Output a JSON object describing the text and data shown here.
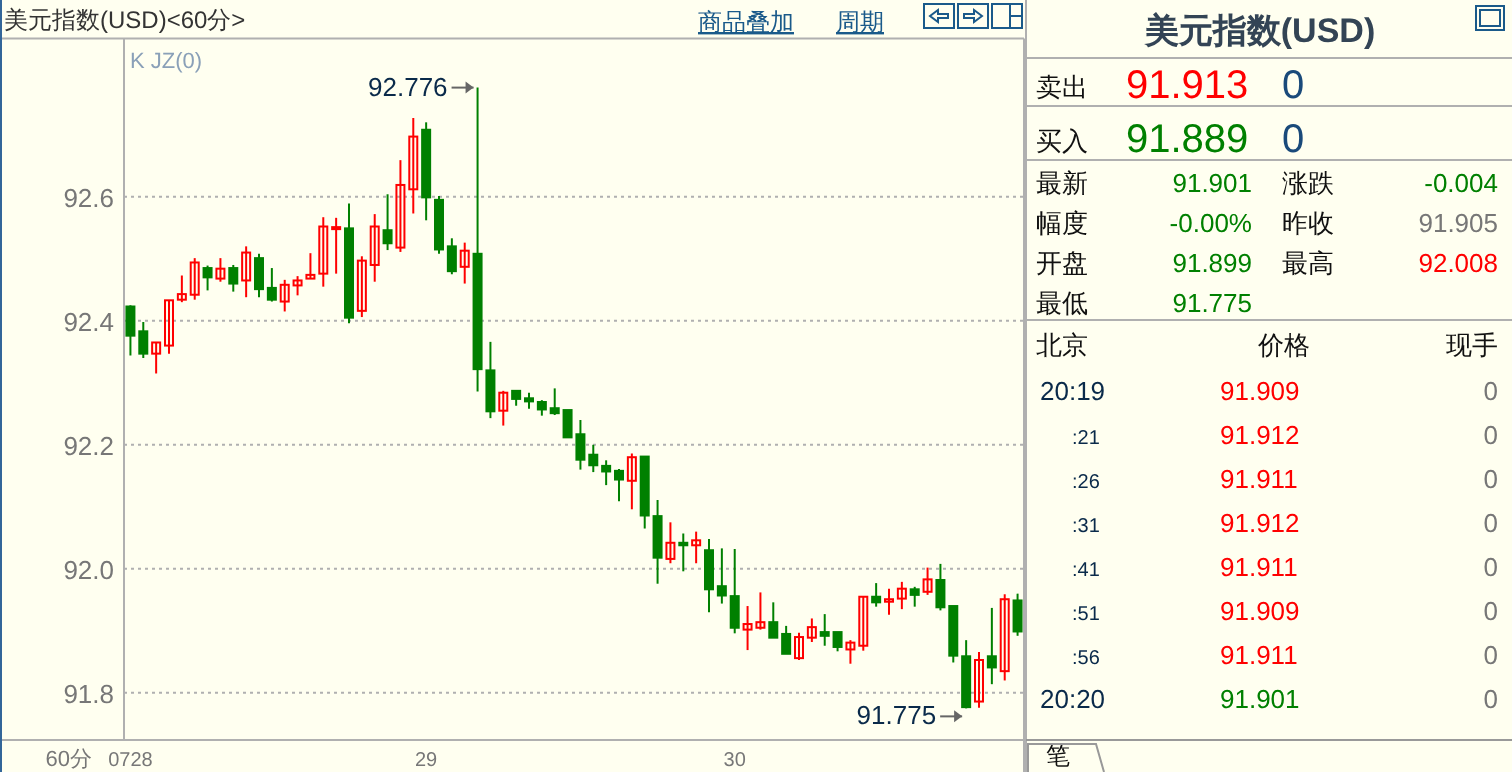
{
  "chart_data": [
    {
      "type": "candlestick",
      "title": "美元指数(USD)<60分>",
      "subtitle": "K JZ(0)",
      "categories": [
        "0728",
        null,
        null,
        null,
        null,
        null,
        null,
        null,
        null,
        null,
        null,
        null,
        null,
        null,
        null,
        null,
        null,
        null,
        null,
        null,
        null,
        null,
        null,
        "29",
        null,
        null,
        null,
        null,
        null,
        null,
        null,
        null,
        null,
        null,
        null,
        null,
        null,
        null,
        null,
        null,
        null,
        null,
        null,
        null,
        null,
        null,
        null,
        "30",
        null,
        null,
        null,
        null,
        null,
        null,
        null,
        null,
        null,
        null,
        null,
        null,
        null,
        null,
        null,
        null,
        null,
        null,
        null,
        null,
        null,
        null
      ],
      "ohlc": [
        [
          92.423,
          92.425,
          92.344,
          92.376
        ],
        [
          92.383,
          92.398,
          92.34,
          92.347
        ],
        [
          92.347,
          92.365,
          92.315,
          92.365
        ],
        [
          92.36,
          92.433,
          92.347,
          92.433
        ],
        [
          92.434,
          92.473,
          92.43,
          92.443
        ],
        [
          92.442,
          92.501,
          92.434,
          92.494
        ],
        [
          92.485,
          92.489,
          92.449,
          92.47
        ],
        [
          92.468,
          92.501,
          92.463,
          92.484
        ],
        [
          92.485,
          92.49,
          92.447,
          92.46
        ],
        [
          92.465,
          92.52,
          92.438,
          92.51
        ],
        [
          92.501,
          92.508,
          92.438,
          92.451
        ],
        [
          92.453,
          92.485,
          92.431,
          92.434
        ],
        [
          92.431,
          92.466,
          92.415,
          92.458
        ],
        [
          92.457,
          92.472,
          92.441,
          92.465
        ],
        [
          92.468,
          92.509,
          92.468,
          92.474
        ],
        [
          92.476,
          92.567,
          92.455,
          92.552
        ],
        [
          92.548,
          92.566,
          92.476,
          92.551
        ],
        [
          92.549,
          92.589,
          92.396,
          92.405
        ],
        [
          92.416,
          92.504,
          92.406,
          92.497
        ],
        [
          92.49,
          92.572,
          92.463,
          92.552
        ],
        [
          92.546,
          92.604,
          92.514,
          92.525
        ],
        [
          92.518,
          92.659,
          92.511,
          92.619
        ],
        [
          92.612,
          92.727,
          92.573,
          92.697
        ],
        [
          92.708,
          92.72,
          92.562,
          92.599
        ],
        [
          92.595,
          92.601,
          92.508,
          92.515
        ],
        [
          92.52,
          92.533,
          92.475,
          92.48
        ],
        [
          92.487,
          92.526,
          92.46,
          92.513
        ],
        [
          92.508,
          92.776,
          92.286,
          92.322
        ],
        [
          92.32,
          92.366,
          92.243,
          92.254
        ],
        [
          92.255,
          92.287,
          92.231,
          92.284
        ],
        [
          92.287,
          92.287,
          92.263,
          92.274
        ],
        [
          92.275,
          92.284,
          92.258,
          92.27
        ],
        [
          92.269,
          92.272,
          92.247,
          92.257
        ],
        [
          92.259,
          92.291,
          92.248,
          92.251
        ],
        [
          92.256,
          92.256,
          92.211,
          92.212
        ],
        [
          92.217,
          92.24,
          92.16,
          92.176
        ],
        [
          92.184,
          92.2,
          92.156,
          92.167
        ],
        [
          92.166,
          92.175,
          92.135,
          92.157
        ],
        [
          92.158,
          92.161,
          92.109,
          92.144
        ],
        [
          92.142,
          92.186,
          92.096,
          92.18
        ],
        [
          92.181,
          92.181,
          92.065,
          92.086
        ],
        [
          92.085,
          92.111,
          91.976,
          92.018
        ],
        [
          92.016,
          92.075,
          92.009,
          92.042
        ],
        [
          92.042,
          92.057,
          91.996,
          92.038
        ],
        [
          92.038,
          92.06,
          92.009,
          92.046
        ],
        [
          92.03,
          92.048,
          91.93,
          91.967
        ],
        [
          91.972,
          92.033,
          91.944,
          91.957
        ],
        [
          91.956,
          92.032,
          91.896,
          91.905
        ],
        [
          91.902,
          91.94,
          91.869,
          91.911
        ],
        [
          91.905,
          91.962,
          91.902,
          91.914
        ],
        [
          91.914,
          91.946,
          91.889,
          91.889
        ],
        [
          91.895,
          91.908,
          91.863,
          91.863
        ],
        [
          91.856,
          91.897,
          91.853,
          91.89
        ],
        [
          91.889,
          91.92,
          91.882,
          91.906
        ],
        [
          91.898,
          91.927,
          91.876,
          91.892
        ],
        [
          91.898,
          91.898,
          91.867,
          91.874
        ],
        [
          91.87,
          91.885,
          91.847,
          91.881
        ],
        [
          91.876,
          91.955,
          91.868,
          91.955
        ],
        [
          91.955,
          91.977,
          91.939,
          91.946
        ],
        [
          91.947,
          91.968,
          91.926,
          91.951
        ],
        [
          91.952,
          91.979,
          91.935,
          91.968
        ],
        [
          91.967,
          91.971,
          91.939,
          91.958
        ],
        [
          91.963,
          92.002,
          91.958,
          91.983
        ],
        [
          91.982,
          92.008,
          91.933,
          91.938
        ],
        [
          91.94,
          91.94,
          91.849,
          91.86
        ],
        [
          91.859,
          91.885,
          91.775,
          91.777
        ],
        [
          91.786,
          91.866,
          91.776,
          91.853
        ],
        [
          91.859,
          91.937,
          91.814,
          91.841
        ],
        [
          91.835,
          91.959,
          91.82,
          91.951
        ],
        [
          91.949,
          91.96,
          91.892,
          91.899
        ]
      ],
      "colors": [
        "#008000",
        "#008000",
        "#ff0000",
        "#ff0000",
        "#ff0000",
        "#ff0000",
        "#008000",
        "#ff0000",
        "#008000",
        "#ff0000",
        "#008000",
        "#008000",
        "#ff0000",
        "#ff0000",
        "#ff0000",
        "#ff0000",
        "#ff0000",
        "#008000",
        "#ff0000",
        "#ff0000",
        "#008000",
        "#ff0000",
        "#ff0000",
        "#008000",
        "#008000",
        "#008000",
        "#ff0000",
        "#008000",
        "#008000",
        "#ff0000",
        "#008000",
        "#008000",
        "#008000",
        "#008000",
        "#008000",
        "#008000",
        "#008000",
        "#008000",
        "#008000",
        "#ff0000",
        "#008000",
        "#008000",
        "#ff0000",
        "#008000",
        "#ff0000",
        "#008000",
        "#008000",
        "#008000",
        "#ff0000",
        "#ff0000",
        "#008000",
        "#008000",
        "#ff0000",
        "#ff0000",
        "#008000",
        "#008000",
        "#ff0000",
        "#ff0000",
        "#008000",
        "#ff0000",
        "#ff0000",
        "#008000",
        "#ff0000",
        "#008000",
        "#008000",
        "#008000",
        "#ff0000",
        "#008000",
        "#ff0000",
        "#008000"
      ],
      "ylim": [
        91.724,
        92.855
      ],
      "yticks": [
        91.8,
        {
          "value": 92.0,
          "label": "92.0"
        },
        92.2,
        92.4,
        92.6
      ],
      "grid": "y",
      "annotations": [
        "92.776",
        "91.775",
        "60分",
        "商品叠加",
        "周期"
      ]
    },
    {
      "type": "other",
      "title": "美元指数(USD)",
      "annotations": [
        "卖出",
        "91.913",
        "0",
        "买入",
        "91.889",
        "0",
        "最新",
        "91.901",
        "涨跌",
        "-0.004",
        "幅度",
        "-0.00%",
        "昨收",
        "91.905",
        "开盘",
        "91.899",
        "最高",
        "92.008",
        "最低",
        "91.775",
        "北京",
        "价格",
        "现手",
        "20:19",
        "91.909",
        "0",
        ":21",
        "91.912",
        "0",
        ":26",
        "91.911",
        "0",
        ":31",
        "91.912",
        "0",
        ":41",
        "91.911",
        "0",
        ":51",
        "91.909",
        "0",
        ":56",
        "91.911",
        "0",
        "20:20",
        "91.901",
        "0",
        "笔"
      ]
    }
  ]
}
